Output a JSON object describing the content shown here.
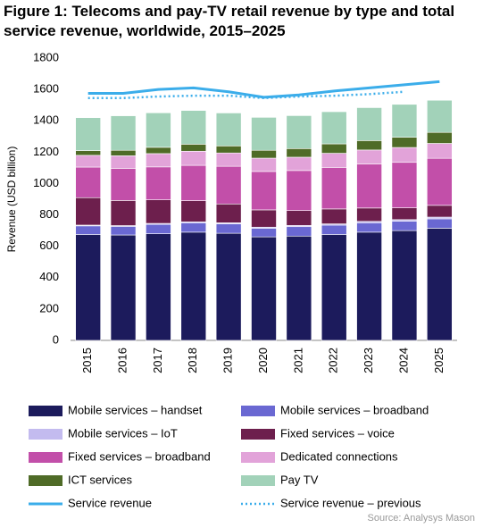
{
  "chart_data": {
    "type": "bar",
    "stacked": true,
    "title": "Figure 1: Telecoms and pay-TV retail revenue by type and total service revenue, worldwide, 2015–2025",
    "y_label": "Revenue (USD billion)",
    "source": "Source: Analysys Mason",
    "categories": [
      "2015",
      "2016",
      "2017",
      "2018",
      "2019",
      "2020",
      "2021",
      "2022",
      "2023",
      "2024",
      "2025"
    ],
    "ylim": [
      0,
      1800
    ],
    "yticks": [
      0,
      200,
      400,
      600,
      800,
      1000,
      1200,
      1400,
      1600,
      1800
    ],
    "series": [
      {
        "name": "Mobile services – handset",
        "color": "#1c1b5c",
        "values": [
          675,
          672,
          680,
          690,
          683,
          660,
          665,
          675,
          690,
          700,
          715
        ]
      },
      {
        "name": "Mobile services – broadband",
        "color": "#6a68d2",
        "values": [
          55,
          55,
          60,
          60,
          60,
          55,
          60,
          60,
          60,
          60,
          60
        ]
      },
      {
        "name": "Mobile services – IoT",
        "color": "#c3bbef",
        "values": [
          5,
          5,
          6,
          6,
          7,
          7,
          8,
          8,
          9,
          10,
          11
        ]
      },
      {
        "name": "Fixed services – voice",
        "color": "#6d1f4d",
        "values": [
          175,
          160,
          150,
          135,
          120,
          110,
          95,
          95,
          85,
          75,
          75
        ]
      },
      {
        "name": "Fixed services – broadband",
        "color": "#c24fa9",
        "values": [
          195,
          205,
          210,
          225,
          240,
          245,
          255,
          265,
          280,
          290,
          300
        ]
      },
      {
        "name": "Dedicated connections",
        "color": "#e2a3d9",
        "values": [
          75,
          80,
          85,
          90,
          85,
          85,
          85,
          90,
          90,
          95,
          95
        ]
      },
      {
        "name": "ICT services",
        "color": "#4f6b27",
        "values": [
          30,
          35,
          40,
          45,
          45,
          50,
          55,
          60,
          60,
          65,
          70
        ]
      },
      {
        "name": "Pay TV",
        "color": "#a2d2b9",
        "values": [
          210,
          220,
          220,
          215,
          210,
          210,
          210,
          205,
          210,
          210,
          205
        ]
      },
      {
        "name": "Service revenue",
        "type": "line",
        "color": "#3badea",
        "dashed": false,
        "values": [
          1575,
          1575,
          1600,
          1610,
          1585,
          1550,
          1565,
          1590,
          1610,
          1630,
          1650
        ]
      },
      {
        "name": "Service revenue – previous",
        "type": "line",
        "color": "#3badea",
        "dashed": true,
        "values": [
          1545,
          1545,
          1555,
          1560,
          1560,
          1545,
          1555,
          1560,
          1570,
          1585,
          null
        ]
      }
    ]
  }
}
